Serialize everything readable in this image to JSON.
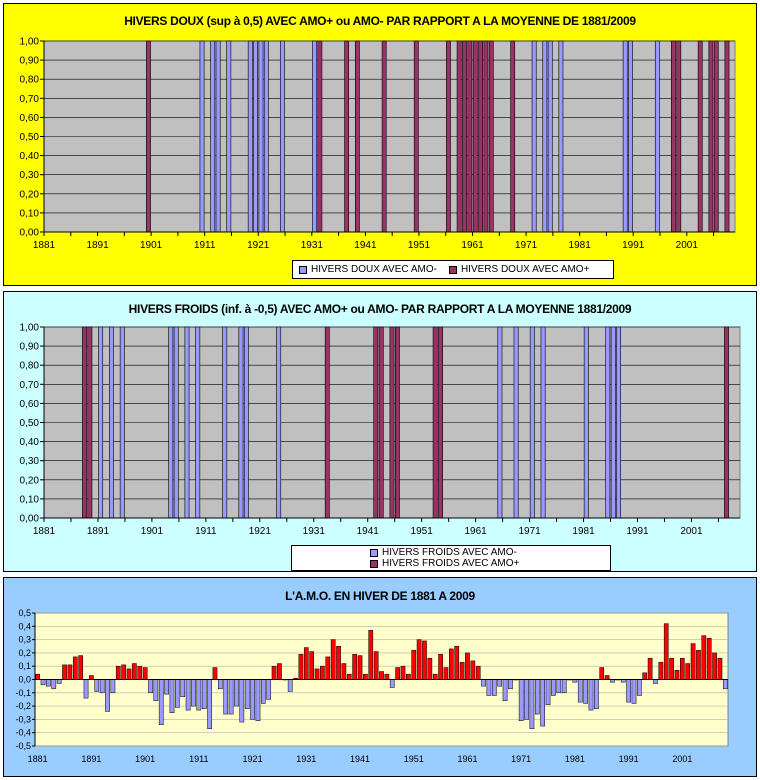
{
  "chart_data": [
    {
      "type": "bar",
      "title": "HIVERS DOUX (sup à 0,5) AVEC AMO+ ou AMO- PAR RAPPORT A LA MOYENNE DE 1881/2009",
      "y_ticks": [
        "0,00",
        "0,10",
        "0,20",
        "0,30",
        "0,40",
        "0,50",
        "0,60",
        "0,70",
        "0,80",
        "0,90",
        "1,00"
      ],
      "ylim": [
        0,
        1
      ],
      "x_range": [
        1881,
        2009
      ],
      "x_ticks": [
        "1881",
        "1891",
        "1901",
        "1911",
        "1921",
        "1931",
        "1941",
        "1951",
        "1961",
        "1971",
        "1981",
        "1991",
        "2001"
      ],
      "series": [
        {
          "name": "HIVERS DOUX AVEC AMO-",
          "color": "#9999ff",
          "years": [
            1910,
            1912,
            1913,
            1915,
            1919,
            1920,
            1921,
            1922,
            1925,
            1931,
            1972,
            1974,
            1975,
            1977,
            1989,
            1990,
            1995
          ],
          "value": 1
        },
        {
          "name": "HIVERS DOUX AVEC AMO+",
          "color": "#993366",
          "years": [
            1900,
            1932,
            1937,
            1939,
            1944,
            1950,
            1956,
            1958,
            1959,
            1960,
            1961,
            1962,
            1963,
            1964,
            1968,
            1998,
            1999,
            2003,
            2005,
            2006,
            2008
          ],
          "value": 1
        }
      ],
      "legend": [
        "HIVERS DOUX AVEC AMO-",
        "HIVERS DOUX AVEC AMO+"
      ]
    },
    {
      "type": "bar",
      "title": "HIVERS FROIDS (inf. à -0,5) AVEC AMO+ ou AMO- PAR RAPPORT A LA MOYENNE 1881/2009",
      "y_ticks": [
        "0,00",
        "0,10",
        "0,20",
        "0,30",
        "0,40",
        "0,50",
        "0,60",
        "0,70",
        "0,80",
        "0,90",
        "1,00"
      ],
      "ylim": [
        0,
        1
      ],
      "x_range": [
        1881,
        2009
      ],
      "x_ticks": [
        "1881",
        "1891",
        "1901",
        "1911",
        "1921",
        "1931",
        "1941",
        "1951",
        "1961",
        "1971",
        "1981",
        "1991",
        "2001"
      ],
      "series": [
        {
          "name": "HIVERS FROIDS AVEC AMO-",
          "color": "#9999ff",
          "years": [
            1891,
            1893,
            1895,
            1904,
            1905,
            1907,
            1909,
            1914,
            1917,
            1918,
            1924,
            1965,
            1968,
            1971,
            1973,
            1981,
            1985,
            1986,
            1987
          ],
          "value": 1
        },
        {
          "name": "HIVERS FROIDS AVEC AMO+",
          "color": "#993366",
          "years": [
            1888,
            1889,
            1933,
            1942,
            1943,
            1945,
            1946,
            1953,
            1954,
            2007
          ],
          "value": 1
        }
      ],
      "legend": [
        "HIVERS FROIDS AVEC AMO-",
        "HIVERS FROIDS AVEC AMO+"
      ]
    },
    {
      "type": "bar",
      "title": "L'A.M.O. EN HIVER DE 1881 A 2009",
      "y_ticks": [
        "-0,5",
        "-0,4",
        "-0,3",
        "-0,2",
        "-0,1",
        "0,0",
        "0,1",
        "0,2",
        "0,3",
        "0,4",
        "0,5"
      ],
      "ylim": [
        -0.5,
        0.5
      ],
      "x_ticks": [
        "1881",
        "1891",
        "1901",
        "1911",
        "1921",
        "1931",
        "1941",
        "1951",
        "1961",
        "1971",
        "1981",
        "1991",
        "2001"
      ],
      "start_year": 1881,
      "positive_color": "#ff0000",
      "negative_color": "#9999ff",
      "values": [
        0.04,
        -0.04,
        -0.05,
        -0.07,
        -0.03,
        0.11,
        0.11,
        0.17,
        0.18,
        -0.14,
        0.03,
        -0.09,
        -0.1,
        -0.24,
        -0.1,
        0.1,
        0.11,
        0.08,
        0.12,
        0.1,
        0.09,
        -0.1,
        -0.16,
        -0.34,
        -0.11,
        -0.25,
        -0.21,
        -0.13,
        -0.23,
        -0.2,
        -0.23,
        -0.22,
        -0.37,
        0.09,
        -0.07,
        -0.26,
        -0.26,
        -0.2,
        -0.32,
        -0.22,
        -0.3,
        -0.31,
        -0.18,
        -0.15,
        0.1,
        0.12,
        0.0,
        -0.09,
        0.01,
        0.19,
        0.24,
        0.21,
        0.08,
        0.1,
        0.17,
        0.3,
        0.25,
        0.12,
        0.04,
        0.19,
        0.18,
        0.04,
        0.37,
        0.21,
        0.06,
        0.04,
        -0.06,
        0.09,
        0.1,
        0.04,
        0.22,
        0.3,
        0.29,
        0.16,
        0.04,
        0.19,
        0.09,
        0.23,
        0.25,
        0.13,
        0.2,
        0.14,
        0.1,
        -0.05,
        -0.12,
        -0.12,
        -0.05,
        -0.16,
        -0.07,
        0.0,
        -0.31,
        -0.3,
        -0.37,
        -0.26,
        -0.35,
        -0.19,
        -0.12,
        -0.1,
        -0.1,
        0.0,
        -0.02,
        -0.17,
        -0.18,
        -0.23,
        -0.22,
        0.09,
        0.03,
        -0.02,
        0.0,
        -0.02,
        -0.17,
        -0.18,
        -0.12,
        0.05,
        0.16,
        -0.03,
        0.13,
        0.42,
        0.16,
        0.07,
        0.16,
        0.12,
        0.27,
        0.22,
        0.33,
        0.31,
        0.2,
        0.16,
        -0.07
      ]
    }
  ]
}
